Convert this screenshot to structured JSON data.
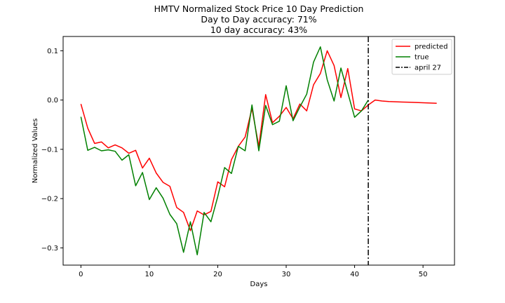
{
  "chart_data": {
    "type": "line",
    "title_lines": [
      "HMTV Normalized Stock Price 10 Day Prediction",
      "Day to Day accuracy: 71%",
      "10 day accuracy: 43%"
    ],
    "xlabel": "Days",
    "ylabel": "Normalized Values",
    "xlim": [
      -2.6,
      54.6
    ],
    "ylim": [
      -0.335,
      0.129
    ],
    "xticks": [
      0,
      10,
      20,
      30,
      40,
      50
    ],
    "yticks": [
      -0.3,
      -0.2,
      -0.1,
      0.0,
      0.1
    ],
    "ytick_labels": [
      "−0.3",
      "−0.2",
      "−0.1",
      "0.0",
      "0.1"
    ],
    "grid": false,
    "legend_position": "top-right",
    "series": [
      {
        "name": "predicted",
        "color": "#ff0000",
        "x": [
          0,
          1,
          2,
          3,
          4,
          5,
          6,
          7,
          8,
          9,
          10,
          11,
          12,
          13,
          14,
          15,
          16,
          17,
          18,
          19,
          20,
          21,
          22,
          23,
          24,
          25,
          26,
          27,
          28,
          29,
          30,
          31,
          32,
          33,
          34,
          35,
          36,
          37,
          38,
          39,
          40,
          41,
          42,
          43,
          44,
          45,
          46,
          47,
          48,
          49,
          50,
          51,
          52
        ],
        "values": [
          -0.008,
          -0.057,
          -0.088,
          -0.085,
          -0.097,
          -0.091,
          -0.097,
          -0.108,
          -0.102,
          -0.138,
          -0.118,
          -0.148,
          -0.167,
          -0.175,
          -0.218,
          -0.228,
          -0.265,
          -0.225,
          -0.233,
          -0.226,
          -0.166,
          -0.176,
          -0.121,
          -0.094,
          -0.075,
          -0.017,
          -0.094,
          0.011,
          -0.046,
          -0.033,
          -0.015,
          -0.038,
          -0.008,
          -0.022,
          0.031,
          0.054,
          0.1,
          0.07,
          0.005,
          0.064,
          -0.018,
          -0.022,
          -0.01,
          0.0,
          -0.002,
          -0.003,
          -0.0035,
          -0.004,
          -0.0045,
          -0.005,
          -0.0055,
          -0.006,
          -0.0065
        ]
      },
      {
        "name": "true",
        "color": "#008000",
        "x": [
          0,
          1,
          2,
          3,
          4,
          5,
          6,
          7,
          8,
          9,
          10,
          11,
          12,
          13,
          14,
          15,
          16,
          17,
          18,
          19,
          20,
          21,
          22,
          23,
          24,
          25,
          26,
          27,
          28,
          29,
          30,
          31,
          32,
          33,
          34,
          35,
          36,
          37,
          38,
          39,
          40,
          41,
          42
        ],
        "values": [
          -0.034,
          -0.102,
          -0.096,
          -0.103,
          -0.101,
          -0.104,
          -0.122,
          -0.111,
          -0.174,
          -0.147,
          -0.202,
          -0.178,
          -0.199,
          -0.232,
          -0.251,
          -0.309,
          -0.247,
          -0.314,
          -0.228,
          -0.247,
          -0.196,
          -0.137,
          -0.149,
          -0.094,
          -0.103,
          -0.01,
          -0.103,
          -0.011,
          -0.05,
          -0.043,
          0.029,
          -0.042,
          -0.014,
          0.012,
          0.077,
          0.108,
          0.041,
          -0.002,
          0.065,
          0.015,
          -0.035,
          -0.022,
          0.0
        ]
      }
    ],
    "vline": {
      "name": "april 27",
      "x": 42,
      "color": "#000000"
    }
  }
}
